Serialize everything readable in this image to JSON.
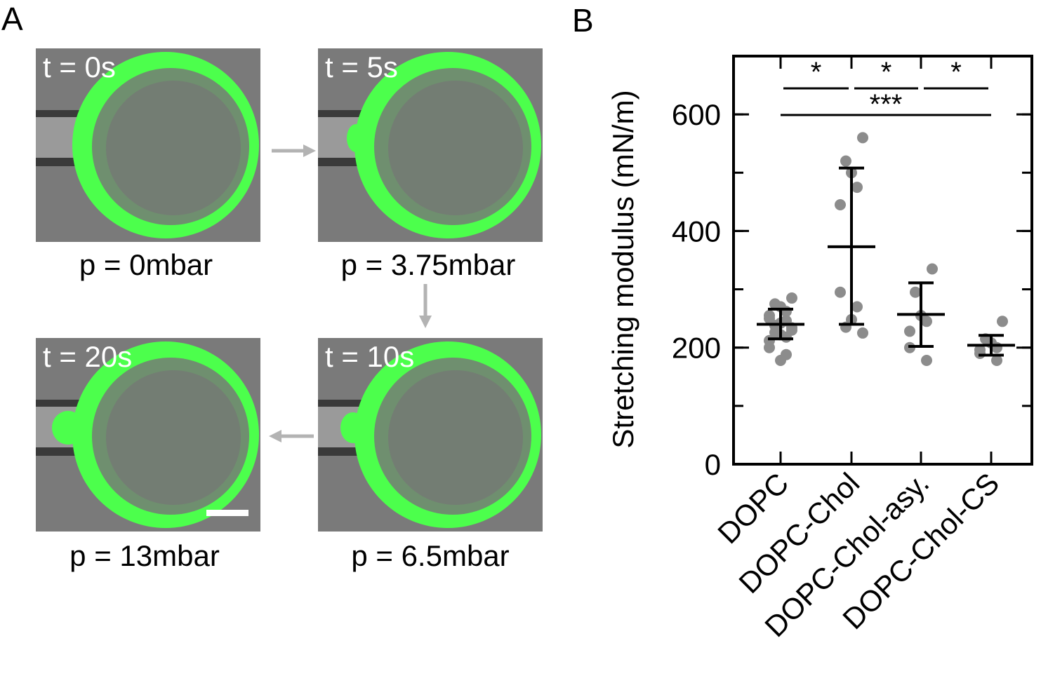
{
  "panel_a": {
    "letter": "A",
    "frames": [
      {
        "time": "t = 0s",
        "pressure": "p = 0mbar",
        "bulge": 0
      },
      {
        "time": "t = 5s",
        "pressure": "p = 3.75mbar",
        "bulge": 1
      },
      {
        "time": "t = 10s",
        "pressure": "p = 6.5mbar",
        "bulge": 2
      },
      {
        "time": "t = 20s",
        "pressure": "p = 13mbar",
        "bulge": 3
      }
    ],
    "arrow_color": "#b3b3b3",
    "vesicle_color": "#4cff4c"
  },
  "panel_b": {
    "letter": "B"
  },
  "chart_data": {
    "type": "scatter",
    "ylabel": "Stretching modulus (mN/m)",
    "xlabel": "",
    "ylim": [
      0,
      700
    ],
    "yticks": [
      0,
      200,
      400,
      600
    ],
    "categories": [
      "DOPC",
      "DOPC-Chol",
      "DOPC-Chol-asy.",
      "DOPC-Chol-CS"
    ],
    "point_color": "#8c8c8c",
    "series": [
      {
        "category": "DOPC",
        "mean": 240,
        "sd_low": 215,
        "sd_high": 266,
        "points": [
          285,
          275,
          270,
          262,
          255,
          250,
          246,
          242,
          238,
          234,
          230,
          226,
          222,
          218,
          212,
          200,
          188,
          178
        ]
      },
      {
        "category": "DOPC-Chol",
        "mean": 373,
        "sd_low": 240,
        "sd_high": 508,
        "points": [
          560,
          520,
          500,
          475,
          445,
          295,
          270,
          248,
          235,
          225
        ]
      },
      {
        "category": "DOPC-Chol-asy.",
        "mean": 257,
        "sd_low": 202,
        "sd_high": 311,
        "points": [
          335,
          295,
          255,
          245,
          228,
          200,
          178
        ]
      },
      {
        "category": "DOPC-Chol-CS",
        "mean": 204,
        "sd_low": 187,
        "sd_high": 221,
        "points": [
          245,
          215,
          208,
          200,
          196,
          190,
          178
        ]
      }
    ],
    "significance": [
      {
        "from": "DOPC",
        "to": "DOPC-Chol",
        "label": "*"
      },
      {
        "from": "DOPC-Chol",
        "to": "DOPC-Chol-asy.",
        "label": "*"
      },
      {
        "from": "DOPC-Chol-asy.",
        "to": "DOPC-Chol-CS",
        "label": "*"
      },
      {
        "from": "DOPC",
        "to": "DOPC-Chol-CS",
        "label": "***"
      }
    ]
  }
}
